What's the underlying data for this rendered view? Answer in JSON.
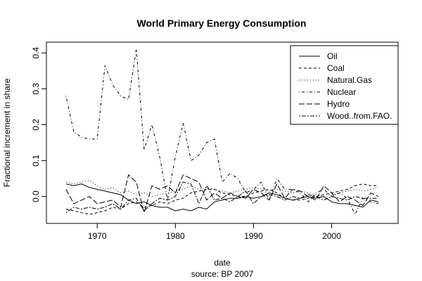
{
  "chart_data": {
    "type": "line",
    "title": "World Primary Energy Consumption",
    "xlabel": "date",
    "ylabel": "Fractional increment in share",
    "source": "source: BP 2007",
    "xlim": [
      1963.5,
      2008.5
    ],
    "ylim": [
      -0.075,
      0.43
    ],
    "x_ticks": [
      1970,
      1980,
      1990,
      2000
    ],
    "y_ticks": [
      0.0,
      0.1,
      0.2,
      0.3,
      0.4
    ],
    "y_tick_labels": [
      "0.0",
      "0.1",
      "0.2",
      "0.3",
      "0.4"
    ],
    "grid": false,
    "legend": {
      "position": "top-right"
    },
    "x": [
      1966,
      1967,
      1968,
      1969,
      1970,
      1971,
      1972,
      1973,
      1974,
      1975,
      1976,
      1977,
      1978,
      1979,
      1980,
      1981,
      1982,
      1983,
      1984,
      1985,
      1986,
      1987,
      1988,
      1989,
      1990,
      1991,
      1992,
      1993,
      1994,
      1995,
      1996,
      1997,
      1998,
      1999,
      2000,
      2001,
      2002,
      2003,
      2004,
      2005,
      2006
    ],
    "series": [
      {
        "name": "Oil",
        "style": "solid",
        "values": [
          0.035,
          0.03,
          0.035,
          0.025,
          0.02,
          0.015,
          0.01,
          0.005,
          -0.01,
          -0.02,
          -0.015,
          -0.025,
          -0.03,
          -0.03,
          -0.04,
          -0.035,
          -0.04,
          -0.03,
          -0.035,
          -0.015,
          -0.01,
          -0.005,
          -0.005,
          0.0,
          -0.005,
          0.0,
          0.01,
          0.005,
          -0.005,
          -0.01,
          -0.005,
          0.0,
          -0.005,
          0.0,
          -0.015,
          -0.02,
          -0.02,
          -0.025,
          -0.03,
          -0.01,
          -0.015
        ]
      },
      {
        "name": "Coal",
        "style": "dashed",
        "values": [
          -0.035,
          -0.04,
          -0.045,
          -0.05,
          -0.045,
          -0.04,
          -0.03,
          -0.035,
          -0.02,
          -0.015,
          -0.03,
          -0.025,
          -0.015,
          -0.02,
          -0.01,
          -0.005,
          0.01,
          0.015,
          0.02,
          0.02,
          0.01,
          0.005,
          0.0,
          0.0,
          0.01,
          0.015,
          0.02,
          0.01,
          -0.005,
          -0.01,
          -0.01,
          -0.005,
          0.0,
          0.005,
          0.01,
          0.015,
          0.02,
          0.03,
          0.035,
          0.03,
          0.03
        ]
      },
      {
        "name": "Natural.Gas",
        "style": "dotted",
        "values": [
          0.04,
          0.035,
          0.04,
          0.045,
          0.03,
          0.02,
          0.025,
          0.01,
          0.015,
          0.005,
          0.01,
          0.0,
          0.005,
          0.01,
          0.015,
          0.02,
          0.03,
          0.02,
          0.025,
          0.02,
          0.015,
          0.01,
          0.015,
          0.02,
          0.025,
          0.02,
          0.015,
          0.02,
          0.015,
          0.01,
          0.015,
          0.01,
          0.005,
          0.0,
          0.005,
          0.01,
          0.015,
          0.02,
          0.015,
          0.02,
          0.025
        ]
      },
      {
        "name": "Nuclear",
        "style": "dotdash",
        "values": [
          0.28,
          0.18,
          0.165,
          0.16,
          0.16,
          0.365,
          0.31,
          0.28,
          0.27,
          0.41,
          0.13,
          0.2,
          0.11,
          -0.01,
          0.11,
          0.205,
          0.1,
          0.115,
          0.15,
          0.16,
          0.04,
          0.065,
          0.05,
          0.01,
          0.02,
          0.04,
          -0.01,
          0.05,
          0.02,
          0.02,
          0.01,
          -0.015,
          0.01,
          0.02,
          0.0,
          0.01,
          -0.005,
          -0.05,
          -0.005,
          -0.015,
          -0.02
        ]
      },
      {
        "name": "Hydro",
        "style": "longdash",
        "values": [
          0.02,
          -0.02,
          -0.01,
          0.0,
          -0.02,
          -0.015,
          -0.01,
          -0.03,
          0.06,
          0.04,
          -0.045,
          0.03,
          0.02,
          0.03,
          0.01,
          0.06,
          0.05,
          0.04,
          -0.01,
          0.01,
          -0.005,
          0.01,
          0.0,
          -0.005,
          0.02,
          0.01,
          -0.01,
          0.035,
          -0.005,
          0.02,
          0.015,
          0.0,
          -0.01,
          0.03,
          0.01,
          -0.015,
          0.0,
          -0.01,
          -0.025,
          0.01,
          0.0
        ]
      },
      {
        "name": "Wood..from.FAO.",
        "style": "twodash",
        "values": [
          -0.045,
          -0.03,
          -0.035,
          -0.03,
          -0.035,
          -0.03,
          -0.02,
          -0.035,
          -0.01,
          -0.005,
          -0.04,
          -0.02,
          -0.005,
          -0.01,
          0.0,
          0.04,
          0.035,
          -0.02,
          0.03,
          -0.01,
          -0.005,
          -0.015,
          0.0,
          0.015,
          -0.02,
          0.0,
          0.005,
          0.0,
          -0.01,
          0.0,
          -0.005,
          0.005,
          0.0,
          -0.01,
          0.0,
          -0.005,
          -0.01,
          0.0,
          -0.005,
          -0.005,
          -0.005
        ]
      }
    ]
  }
}
